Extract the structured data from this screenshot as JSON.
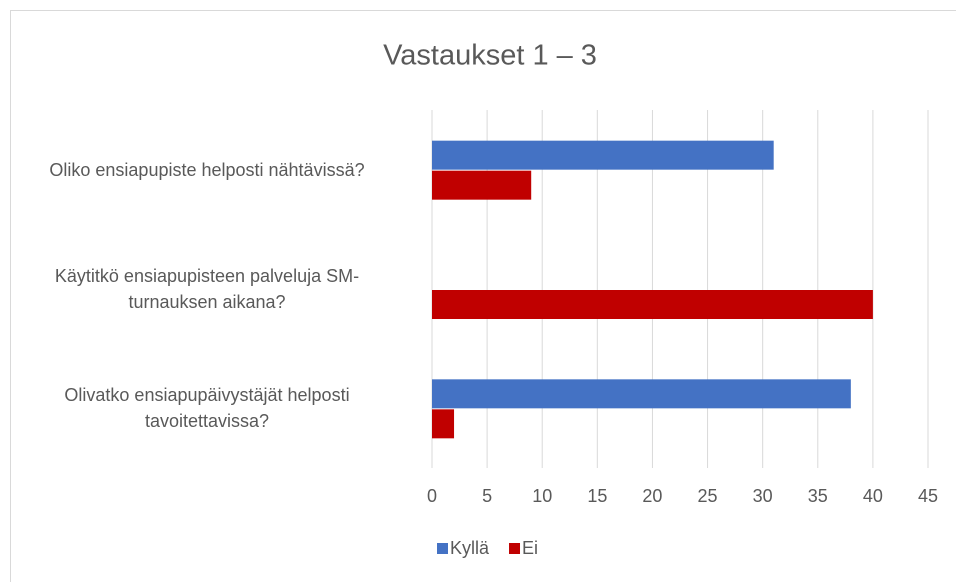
{
  "chart_data": {
    "type": "barh",
    "title": "Vastaukset 1 – 3",
    "categories": [
      "Oliko ensiapupiste helposti nähtävissä?",
      "Käytitkö ensiapupisteen palveluja SM-turnauksen aikana?",
      "Olivatko ensiapupäivystäjät helposti tavoitettavissa?"
    ],
    "series": [
      {
        "name": "Kyllä",
        "color": "#4472c4",
        "values": [
          31,
          0,
          38
        ]
      },
      {
        "name": "Ei",
        "color": "#c00000",
        "values": [
          9,
          40,
          2
        ]
      }
    ],
    "xlim": [
      0,
      45
    ],
    "xticks": [
      0,
      5,
      10,
      15,
      20,
      25,
      30,
      35,
      40,
      45
    ],
    "grid": true,
    "legend": "bottom"
  }
}
